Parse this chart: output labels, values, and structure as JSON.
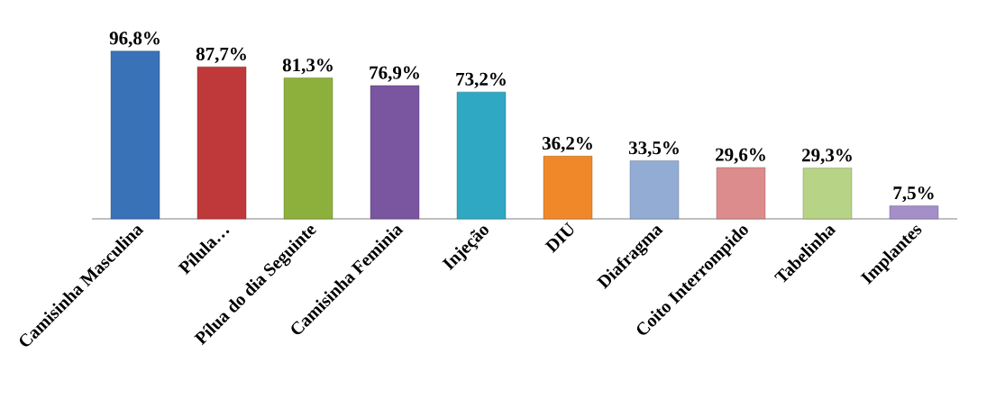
{
  "chart_data": {
    "type": "bar",
    "categories": [
      "Camisinha Masculina",
      "Pílula…",
      "Pílua do dia Seguinte",
      "Camisinha Feminia",
      "Injeção",
      "DIU",
      "Diafragma",
      "Coito Interrompido",
      "Tabelinha",
      "Implantes"
    ],
    "values": [
      96.8,
      87.7,
      81.3,
      76.9,
      73.2,
      36.2,
      33.5,
      29.6,
      29.3,
      7.5
    ],
    "value_labels": [
      "96,8%",
      "87,7%",
      "81,3%",
      "76,9%",
      "73,2%",
      "36,2%",
      "33,5%",
      "29,6%",
      "29,3%",
      "7,5%"
    ],
    "colors": [
      "#3a72b8",
      "#c0393a",
      "#8db03c",
      "#7a55a0",
      "#2fa8c3",
      "#f0882a",
      "#93acd4",
      "#dc8c8c",
      "#b7d486",
      "#a58fc8"
    ]
  }
}
